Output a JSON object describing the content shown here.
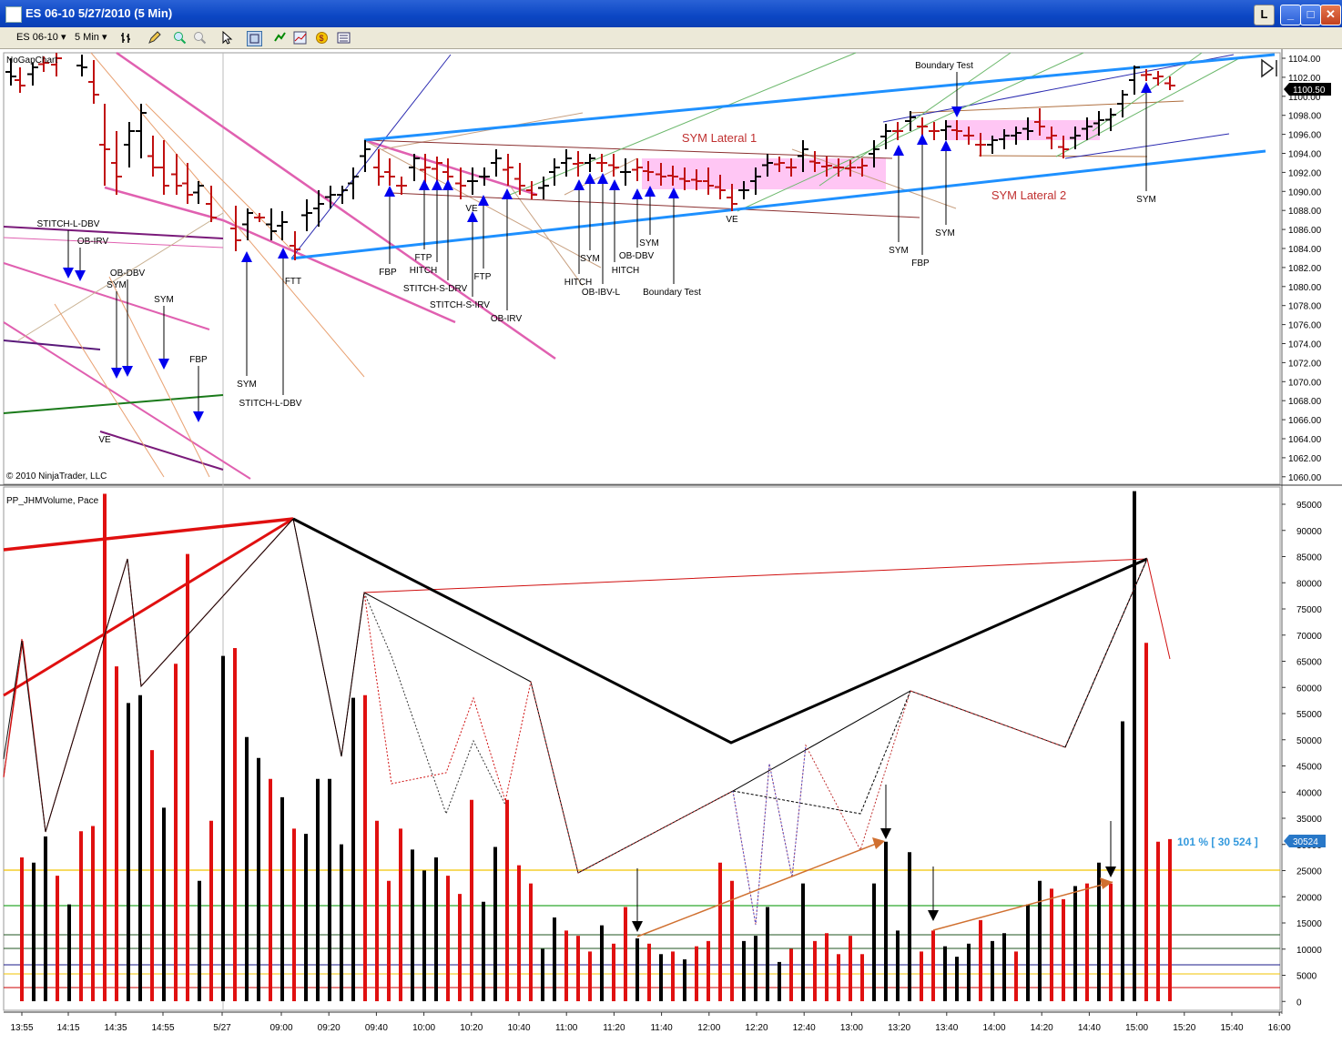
{
  "window": {
    "title": "ES 06-10  5/27/2010 (5 Min)",
    "btn_restore": "L",
    "btn_min": "_",
    "btn_max": "□",
    "btn_close": "✕"
  },
  "toolbar": {
    "instrument": "ES 06-10",
    "interval": "5 Min",
    "icons": [
      "bar-type-icon",
      "drawing-pencil-icon",
      "zoom-in-icon",
      "zoom-out-icon",
      "pointer-icon",
      "properties-icon",
      "strategy-icon",
      "indicator-icon",
      "data-box-icon",
      "chart-trader-icon"
    ]
  },
  "price_panel": {
    "label": "NoGapChart",
    "copyright": "© 2010 NinjaTrader, LLC",
    "current_price": "1100.50",
    "price_ticks": [
      "1104.00",
      "1102.00",
      "1100.00",
      "1098.00",
      "1096.00",
      "1094.00",
      "1092.00",
      "1090.00",
      "1088.00",
      "1086.00",
      "1084.00",
      "1082.00",
      "1080.00",
      "1078.00",
      "1076.00",
      "1074.00",
      "1072.00",
      "1070.00",
      "1068.00",
      "1066.00",
      "1064.00",
      "1062.00",
      "1060.00"
    ],
    "annotations": [
      "STITCH-L-DBV",
      "OB-IRV",
      "OB-DBV",
      "SYM",
      "SYM",
      "FBP",
      "VE",
      "SYM",
      "STITCH-L-DBV",
      "FTT",
      "FBP",
      "FTP",
      "HITCH",
      "STITCH-S-DRV",
      "STITCH-S-IRV",
      "VE",
      "FTP",
      "OB-IRV",
      "HITCH",
      "SYM",
      "OB-IBV-L",
      "OB-DBV",
      "SYM",
      "HITCH",
      "Boundary Test",
      "VE",
      "SYM Lateral 1",
      "SYM",
      "FBP",
      "SYM",
      "Boundary Test",
      "SYM Lateral 2",
      "SYM"
    ]
  },
  "volume_panel": {
    "label": "PP_JHMVolume, Pace",
    "pace_readout": "101 % [ 30 524 ]",
    "current_volume": "30524",
    "volume_ticks": [
      "95000",
      "90000",
      "85000",
      "80000",
      "75000",
      "70000",
      "65000",
      "60000",
      "55000",
      "50000",
      "45000",
      "40000",
      "35000",
      "30000",
      "25000",
      "20000",
      "15000",
      "10000",
      "5000",
      "0"
    ]
  },
  "time_axis": [
    "13:55",
    "14:15",
    "14:35",
    "14:55",
    "5/27",
    "09:00",
    "09:20",
    "09:40",
    "10:00",
    "10:20",
    "10:40",
    "11:00",
    "11:20",
    "11:40",
    "12:00",
    "12:20",
    "12:40",
    "13:00",
    "13:20",
    "13:40",
    "14:00",
    "14:20",
    "14:40",
    "15:00",
    "15:20",
    "15:40",
    "16:00"
  ],
  "colors": {
    "up_bar": "#000000",
    "down_bar": "#d00000",
    "channel_blue": "#1e90ff",
    "lateral_zone": "#ff99ee",
    "trend_pink": "#e060b0",
    "annotation_arrow": "#0000ee",
    "pace_text": "#3399dd"
  }
}
